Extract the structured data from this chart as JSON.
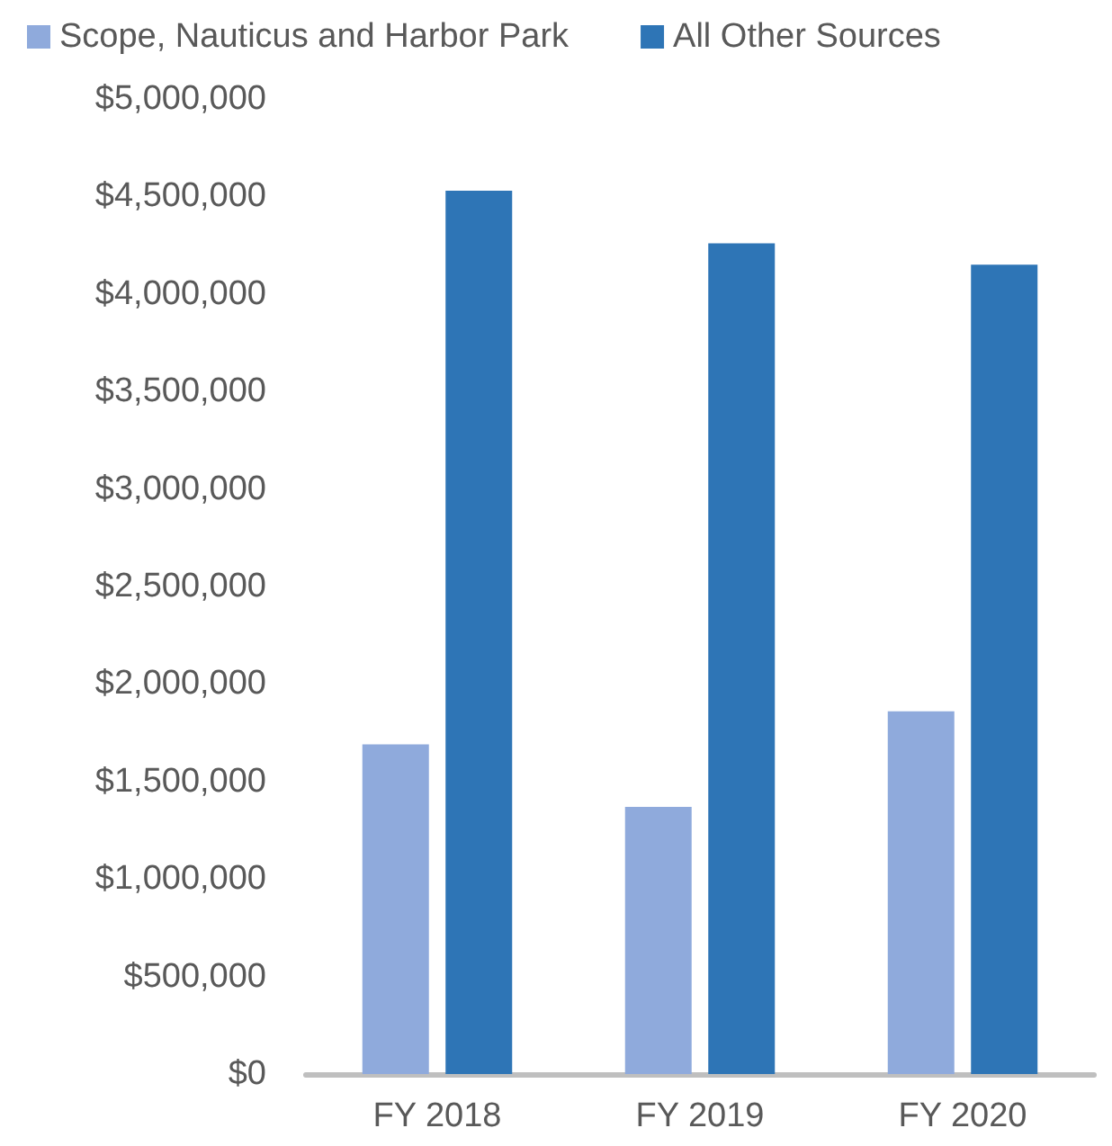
{
  "chart_data": {
    "type": "bar",
    "categories": [
      "FY 2018",
      "FY 2019",
      "FY 2020"
    ],
    "series": [
      {
        "name": "Scope, Nauticus and Harbor Park",
        "color": "#8faadc",
        "values": [
          1690000,
          1370000,
          1860000
        ]
      },
      {
        "name": "All Other Sources",
        "color": "#2e75b6",
        "values": [
          4530000,
          4260000,
          4150000
        ]
      }
    ],
    "ylim": [
      0,
      5000000
    ],
    "yticks": [
      {
        "value": 0,
        "label": "$0"
      },
      {
        "value": 500000,
        "label": "$500,000"
      },
      {
        "value": 1000000,
        "label": "$1,000,000"
      },
      {
        "value": 1500000,
        "label": "$1,500,000"
      },
      {
        "value": 2000000,
        "label": "$2,000,000"
      },
      {
        "value": 2500000,
        "label": "$2,500,000"
      },
      {
        "value": 3000000,
        "label": "$3,000,000"
      },
      {
        "value": 3500000,
        "label": "$3,500,000"
      },
      {
        "value": 4000000,
        "label": "$4,000,000"
      },
      {
        "value": 4500000,
        "label": "$4,500,000"
      },
      {
        "value": 5000000,
        "label": "$5,000,000"
      }
    ],
    "grid": false,
    "legend": "top left"
  }
}
